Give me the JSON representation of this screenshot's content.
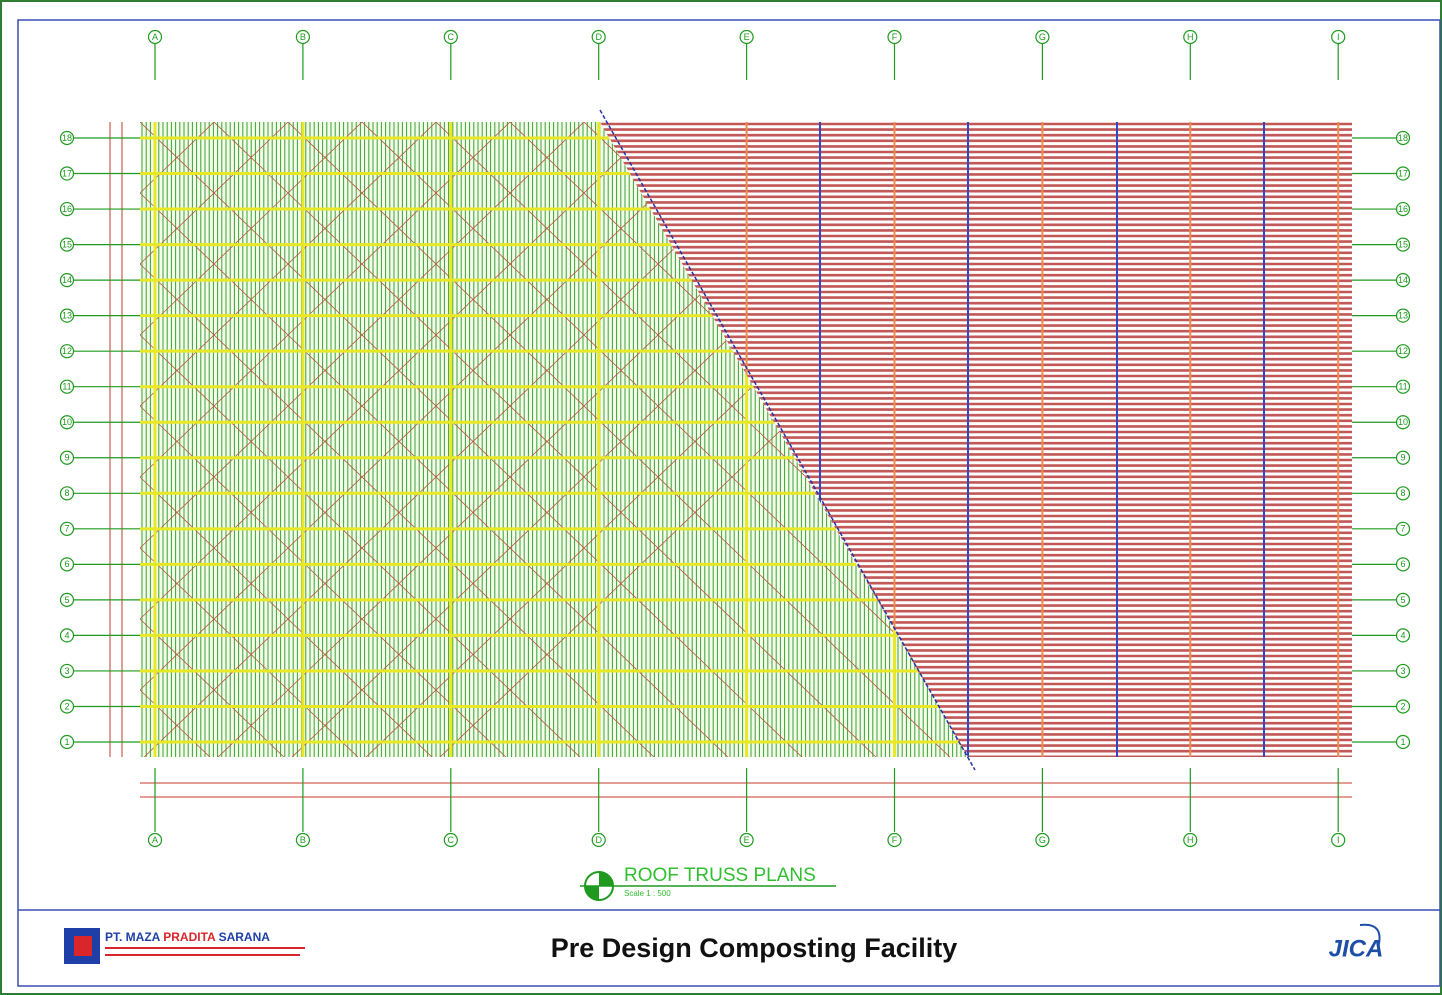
{
  "grid": {
    "columns": [
      "A",
      "B",
      "C",
      "D",
      "E",
      "F",
      "G",
      "H",
      "I"
    ],
    "rows": [
      "18",
      "17",
      "16",
      "15",
      "14",
      "13",
      "12",
      "11",
      "10",
      "9",
      "8",
      "7",
      "6",
      "5",
      "4",
      "3",
      "2",
      "1"
    ]
  },
  "drawing": {
    "title": "ROOF TRUSS PLANS",
    "scale": "Scale 1 : 500"
  },
  "title_block": {
    "company": [
      "PT. MAZA",
      "PRADITA",
      "SARANA"
    ],
    "project": "Pre Design Composting Facility",
    "client_logo": "JICA"
  }
}
